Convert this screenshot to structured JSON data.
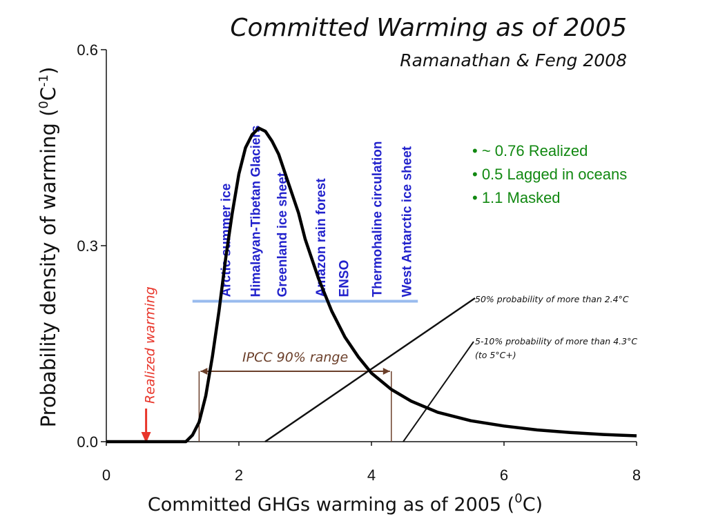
{
  "chart_data": {
    "type": "line",
    "title": "Committed Warming as of 2005",
    "subtitle": "Ramanathan & Feng 2008",
    "xlabel": "Committed GHGs warming as of 2005 (",
    "xlabel_sup": "0",
    "xlabel_end": "C)",
    "ylabel": "Probability density of warming (",
    "ylabel_sup_0": "0",
    "ylabel_mid": "C",
    "ylabel_sup_1": "-1",
    "ylabel_end": ")",
    "xlim": [
      0,
      8
    ],
    "ylim": [
      0,
      0.6
    ],
    "xticks": [
      "0",
      "2",
      "4",
      "6",
      "8"
    ],
    "yticks": [
      "0.0",
      "0.3",
      "0.6"
    ],
    "series": [
      {
        "x": [
          0,
          0.5,
          1.0,
          1.2,
          1.3,
          1.4,
          1.5,
          1.6,
          1.7,
          1.8,
          1.9,
          2.0,
          2.1,
          2.2,
          2.3,
          2.4,
          2.5,
          2.6,
          2.7,
          2.8,
          2.9,
          3.0,
          3.2,
          3.4,
          3.6,
          3.8,
          4.0,
          4.3,
          4.6,
          5.0,
          5.5,
          6.0,
          6.5,
          7.0,
          7.5,
          8.0
        ],
        "y": [
          0,
          0,
          0,
          0.0,
          0.01,
          0.03,
          0.07,
          0.13,
          0.2,
          0.28,
          0.35,
          0.41,
          0.45,
          0.47,
          0.48,
          0.475,
          0.46,
          0.44,
          0.41,
          0.38,
          0.35,
          0.31,
          0.25,
          0.2,
          0.16,
          0.13,
          0.105,
          0.08,
          0.062,
          0.045,
          0.032,
          0.024,
          0.018,
          0.014,
          0.011,
          0.009
        ]
      }
    ],
    "tipping_points": [
      "Arctic summer ice",
      "Himalayan-Tibetan Glaciers",
      "Greenland ice sheet",
      "Amazon rain forest",
      "ENSO",
      "Thermohaline circulation",
      "West Antarctic ice sheet"
    ],
    "tipping_point_level": 0.215,
    "tipping_point_range": [
      1.3,
      4.7
    ],
    "bullets": [
      "• ~ 0.76  Realized",
      "•    0.5  Lagged in oceans",
      "•    1.1 Masked"
    ],
    "annotations": {
      "prob50": "50% probability of more than 2.4°C",
      "prob5_10_line1": "5-10% probability of more than 4.3°C",
      "prob5_10_line2": "(to 5°C+)",
      "ipcc": "IPCC 90% range",
      "realized": "Realized warming"
    },
    "ipcc_range": [
      1.4,
      4.3
    ],
    "realized_value": 0.6,
    "colors": {
      "curve": "#000000",
      "tipping": "#2222cc",
      "tipping_bar": "#99bbee",
      "bullets": "#118811",
      "ipcc": "#6b3f2a",
      "realized": "#e8352a"
    }
  }
}
